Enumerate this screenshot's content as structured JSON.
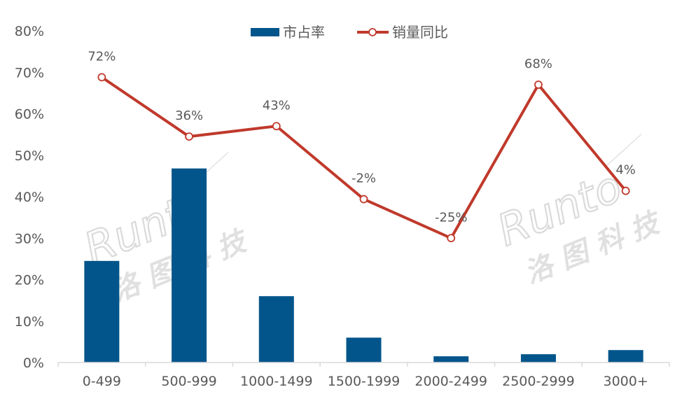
{
  "chart_data": {
    "type": "bar",
    "categories": [
      "0-499",
      "500-999",
      "1000-1499",
      "1500-1999",
      "2000-2499",
      "2500-2999",
      "3000+"
    ],
    "series": [
      {
        "name": "市占率",
        "type": "bar",
        "color": "#02558b",
        "values": [
          24.5,
          46.8,
          16.0,
          6.0,
          1.5,
          2.0,
          3.0
        ]
      },
      {
        "name": "销量同比",
        "type": "line",
        "color": "#c0392b",
        "plot_values": [
          68.8,
          54.5,
          57.0,
          39.4,
          30.0,
          67.0,
          41.4
        ],
        "labels": [
          "72%",
          "36%",
          "43%",
          "-2%",
          "-25%",
          "68%",
          "4%"
        ]
      }
    ],
    "y_tick_labels": [
      "0%",
      "10%",
      "20%",
      "30%",
      "40%",
      "50%",
      "60%",
      "70%",
      "80%"
    ],
    "ylim": [
      0,
      80
    ],
    "grid": false,
    "legend": "top-center"
  },
  "watermark": {
    "brand": "Runto",
    "cn": "洛图科技"
  }
}
